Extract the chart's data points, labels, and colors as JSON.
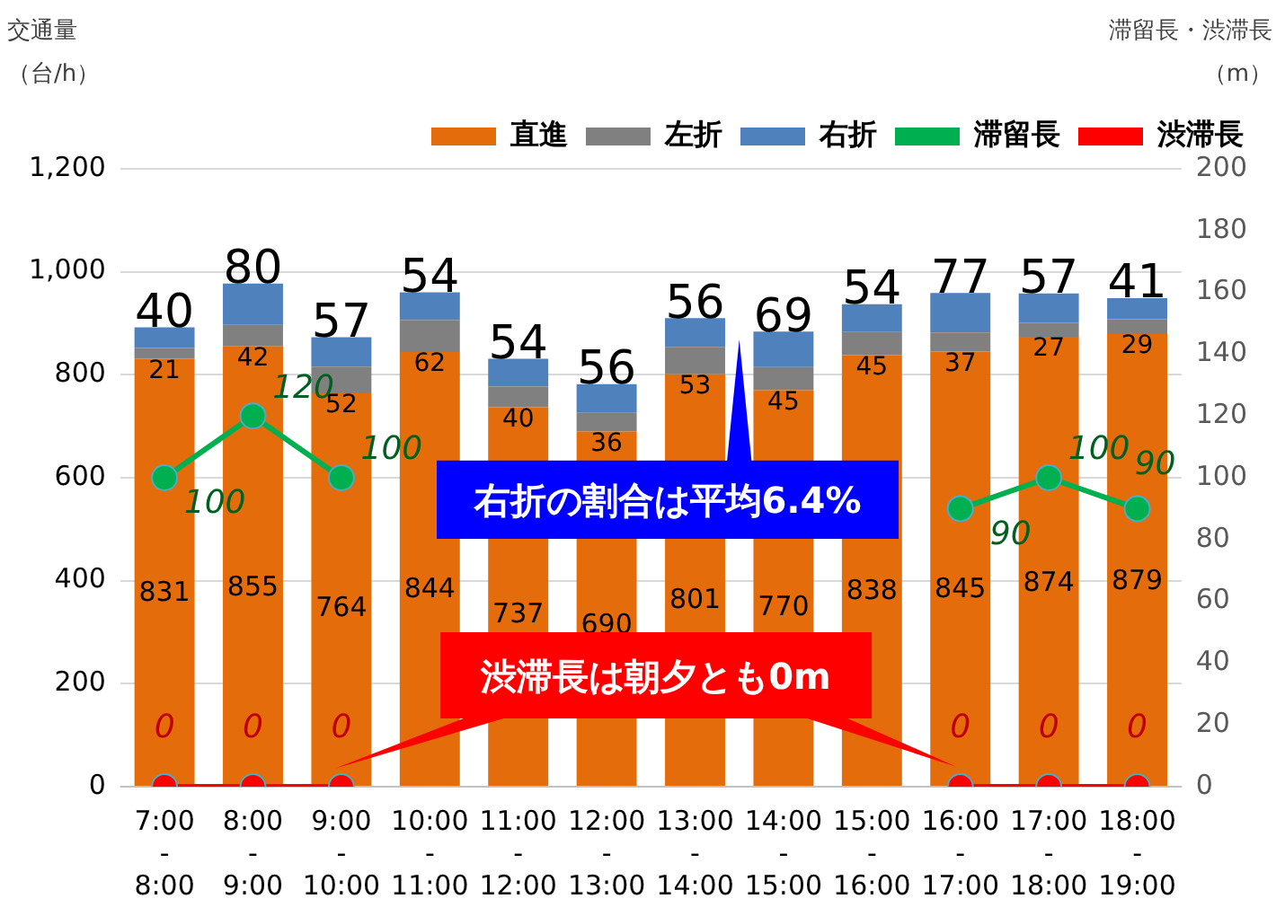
{
  "chart_data": {
    "type": "bar",
    "stacked": true,
    "categories": [
      "7:00\n-\n8:00",
      "8:00\n-\n9:00",
      "9:00\n-\n10:00",
      "10:00\n-\n11:00",
      "11:00\n-\n12:00",
      "12:00\n-\n13:00",
      "13:00\n-\n14:00",
      "14:00\n-\n15:00",
      "15:00\n-\n16:00",
      "16:00\n-\n17:00",
      "17:00\n-\n18:00",
      "18:00\n-\n19:00"
    ],
    "series": [
      {
        "name": "直進",
        "color": "#e46c0a",
        "values": [
          831,
          855,
          764,
          844,
          737,
          690,
          801,
          770,
          838,
          845,
          874,
          879
        ]
      },
      {
        "name": "左折",
        "color": "#808080",
        "values": [
          21,
          42,
          52,
          62,
          40,
          36,
          53,
          45,
          45,
          37,
          27,
          29
        ]
      },
      {
        "name": "右折",
        "color": "#4f81bd",
        "values": [
          40,
          80,
          57,
          54,
          54,
          56,
          56,
          69,
          54,
          77,
          57,
          41
        ]
      },
      {
        "name": "滞留長",
        "type": "line",
        "axis": "y2",
        "color": "#00b050",
        "values": [
          100,
          120,
          100,
          null,
          null,
          null,
          null,
          null,
          null,
          90,
          100,
          90
        ]
      },
      {
        "name": "渋滞長",
        "type": "line",
        "axis": "y2",
        "color": "#ff0000",
        "values": [
          0,
          0,
          0,
          null,
          null,
          null,
          null,
          null,
          null,
          0,
          0,
          0
        ]
      }
    ],
    "ylabel": "交通量（台/h）",
    "y2label": "滞留長・渋滞長（m）",
    "ylim": [
      0,
      1200
    ],
    "yticks": [
      0,
      200,
      400,
      600,
      800,
      {
        "value": 1000,
        "label": "1,000"
      },
      {
        "value": 1200,
        "label": "1,200"
      }
    ],
    "y2lim": [
      0,
      200
    ],
    "y2ticks": [
      0,
      20,
      40,
      60,
      80,
      100,
      120,
      140,
      160,
      180,
      200
    ],
    "grid": "y",
    "legend": "top",
    "marker": "circle",
    "data_labels": true,
    "annotations": [
      "右折の割合は平均6.4%",
      "渋滞長は朝夕とも0m"
    ]
  }
}
